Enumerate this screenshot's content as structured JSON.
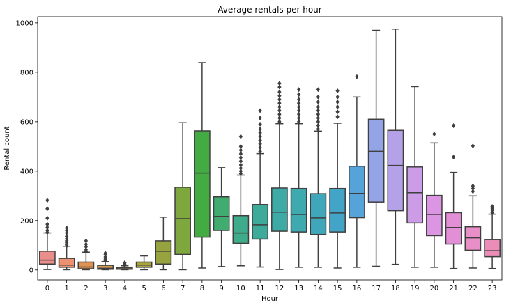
{
  "chart_data": {
    "type": "box",
    "title": "Average rentals per hour",
    "xlabel": "Hour",
    "ylabel": "Rental count",
    "ylim": [
      -40,
      1025
    ],
    "yticks": [
      0,
      200,
      400,
      600,
      800,
      1000
    ],
    "grid": false,
    "legend": "none",
    "categories": [
      "0",
      "1",
      "2",
      "3",
      "4",
      "5",
      "6",
      "7",
      "8",
      "9",
      "10",
      "11",
      "12",
      "13",
      "14",
      "15",
      "16",
      "17",
      "18",
      "19",
      "20",
      "21",
      "22",
      "23"
    ],
    "boxes": [
      {
        "q1": 24,
        "median": 40,
        "q3": 76,
        "whisker_low": 2,
        "whisker_high": 150,
        "color": "#ea8e8b",
        "outliers": [
          152,
          160,
          172,
          185,
          210,
          248,
          282
        ]
      },
      {
        "q1": 11,
        "median": 20,
        "q3": 47,
        "whisker_low": 1,
        "whisker_high": 96,
        "color": "#ec9273",
        "outliers": [
          98,
          103,
          110,
          118,
          126,
          136,
          150,
          160,
          170
        ]
      },
      {
        "q1": 5,
        "median": 12,
        "q3": 32,
        "whisker_low": 1,
        "whisker_high": 72,
        "color": "#de9254",
        "outliers": [
          75,
          82,
          94,
          104,
          118
        ]
      },
      {
        "q1": 3,
        "median": 7,
        "q3": 19,
        "whisker_low": 1,
        "whisker_high": 34,
        "color": "#d19951",
        "outliers": [
          37,
          44,
          53,
          63,
          68
        ]
      },
      {
        "q1": 3,
        "median": 5,
        "q3": 10,
        "whisker_low": 1,
        "whisker_high": 17,
        "color": "#bba24f",
        "outliers": [
          19,
          24,
          29
        ]
      },
      {
        "q1": 11,
        "median": 20,
        "q3": 32,
        "whisker_low": 1,
        "whisker_high": 57,
        "color": "#a8a43f",
        "outliers": []
      },
      {
        "q1": 24,
        "median": 76,
        "q3": 118,
        "whisker_low": 1,
        "whisker_high": 214,
        "color": "#97a33f",
        "outliers": []
      },
      {
        "q1": 63,
        "median": 208,
        "q3": 335,
        "whisker_low": 1,
        "whisker_high": 596,
        "color": "#7ea73e",
        "outliers": []
      },
      {
        "q1": 133,
        "median": 392,
        "q3": 563,
        "whisker_low": 8,
        "whisker_high": 839,
        "color": "#44ab43",
        "outliers": []
      },
      {
        "q1": 160,
        "median": 217,
        "q3": 296,
        "whisker_low": 14,
        "whisker_high": 414,
        "color": "#40ac70",
        "outliers": []
      },
      {
        "q1": 108,
        "median": 150,
        "q3": 220,
        "whisker_low": 17,
        "whisker_high": 384,
        "color": "#3eab8a",
        "outliers": [
          390,
          400,
          412,
          425,
          440,
          455,
          470,
          485,
          500,
          540
        ]
      },
      {
        "q1": 125,
        "median": 183,
        "q3": 265,
        "whisker_low": 12,
        "whisker_high": 471,
        "color": "#3daa9a",
        "outliers": [
          480,
          495,
          510,
          525,
          540,
          555,
          570,
          590,
          615,
          645
        ]
      },
      {
        "q1": 157,
        "median": 234,
        "q3": 332,
        "whisker_low": 2,
        "whisker_high": 592,
        "color": "#3eaaa6",
        "outliers": [
          600,
          615,
          630,
          645,
          660,
          675,
          690,
          705,
          720,
          740,
          755
        ]
      },
      {
        "q1": 154,
        "median": 225,
        "q3": 330,
        "whisker_low": 11,
        "whisker_high": 592,
        "color": "#3fa9b0",
        "outliers": [
          600,
          615,
          630,
          645,
          660,
          675,
          690,
          710,
          730
        ]
      },
      {
        "q1": 144,
        "median": 211,
        "q3": 309,
        "whisker_low": 11,
        "whisker_high": 562,
        "color": "#40a7bb",
        "outliers": [
          570,
          585,
          600,
          615,
          630,
          645,
          660,
          680,
          700,
          730
        ]
      },
      {
        "q1": 154,
        "median": 231,
        "q3": 330,
        "whisker_low": 8,
        "whisker_high": 594,
        "color": "#42a5c8",
        "outliers": [
          620,
          640,
          660,
          680,
          700,
          725
        ]
      },
      {
        "q1": 212,
        "median": 310,
        "q3": 420,
        "whisker_low": 11,
        "whisker_high": 700,
        "color": "#56a3d9",
        "outliers": [
          782
        ]
      },
      {
        "q1": 275,
        "median": 480,
        "q3": 610,
        "whisker_low": 15,
        "whisker_high": 970,
        "color": "#92a4e6",
        "outliers": []
      },
      {
        "q1": 240,
        "median": 423,
        "q3": 565,
        "whisker_low": 23,
        "whisker_high": 975,
        "color": "#b4a1e8",
        "outliers": []
      },
      {
        "q1": 190,
        "median": 313,
        "q3": 417,
        "whisker_low": 11,
        "whisker_high": 742,
        "color": "#cc9de6",
        "outliers": []
      },
      {
        "q1": 139,
        "median": 225,
        "q3": 302,
        "whisker_low": 11,
        "whisker_high": 514,
        "color": "#db95e2",
        "outliers": [
          550
        ]
      },
      {
        "q1": 105,
        "median": 172,
        "q3": 232,
        "whisker_low": 6,
        "whisker_high": 395,
        "color": "#e38fd6",
        "outliers": [
          457,
          584
        ]
      },
      {
        "q1": 80,
        "median": 130,
        "q3": 175,
        "whisker_low": 8,
        "whisker_high": 300,
        "color": "#e88fc7",
        "outliers": [
          318,
          330,
          340,
          502
        ]
      },
      {
        "q1": 54,
        "median": 78,
        "q3": 123,
        "whisker_low": 6,
        "whisker_high": 226,
        "color": "#eb8db7",
        "outliers": [
          232,
          242,
          250,
          257
        ]
      }
    ]
  }
}
